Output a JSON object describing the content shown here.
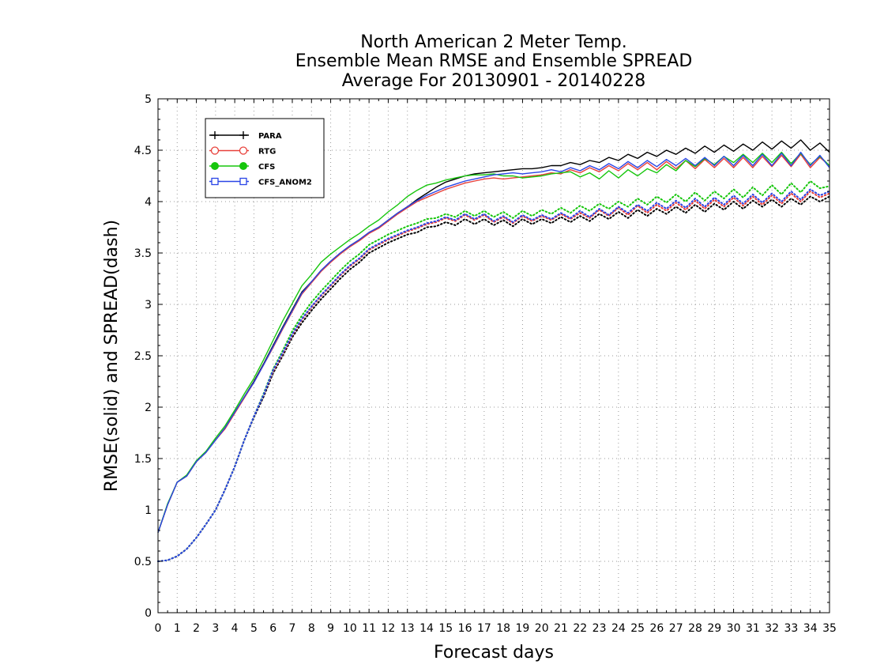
{
  "chart_data": {
    "type": "line",
    "title": [
      "North American 2 Meter Temp.",
      "Ensemble Mean RMSE and Ensemble SPREAD",
      "Average For 20130901 - 20140228"
    ],
    "xlabel": "Forecast days",
    "ylabel": "RMSE(solid) and SPREAD(dash)",
    "xlim": [
      0,
      35
    ],
    "ylim": [
      0,
      5
    ],
    "x_ticks": [
      "0",
      "1",
      "2",
      "3",
      "4",
      "5",
      "6",
      "7",
      "8",
      "9",
      "10",
      "11",
      "12",
      "13",
      "14",
      "15",
      "16",
      "17",
      "18",
      "19",
      "20",
      "21",
      "22",
      "23",
      "24",
      "25",
      "26",
      "27",
      "28",
      "29",
      "30",
      "31",
      "32",
      "33",
      "34",
      "35"
    ],
    "y_ticks": [
      "0",
      "0.5",
      "1",
      "1.5",
      "2",
      "2.5",
      "3",
      "3.5",
      "4",
      "4.5",
      "5"
    ],
    "grid": true,
    "legend_position": "top-left",
    "colors": {
      "PARA": "#000000",
      "RTG": "#e8403a",
      "CFS": "#16c60c",
      "CFS_ANOM2": "#2a45e6"
    },
    "x": [
      0,
      0.5,
      1,
      1.5,
      2,
      2.5,
      3,
      3.5,
      4,
      4.5,
      5,
      5.5,
      6,
      6.5,
      7,
      7.5,
      8,
      8.5,
      9,
      9.5,
      10,
      10.5,
      11,
      11.5,
      12,
      12.5,
      13,
      13.5,
      14,
      14.5,
      15,
      15.5,
      16,
      16.5,
      17,
      17.5,
      18,
      18.5,
      19,
      19.5,
      20,
      20.5,
      21,
      21.5,
      22,
      22.5,
      23,
      23.5,
      24,
      24.5,
      25,
      25.5,
      26,
      26.5,
      27,
      27.5,
      28,
      28.5,
      29,
      29.5,
      30,
      30.5,
      31,
      31.5,
      32,
      32.5,
      33,
      33.5,
      34,
      34.5,
      35
    ],
    "series": [
      {
        "name": "PARA",
        "style": "solid",
        "marker": "plus",
        "values": [
          0.78,
          1.05,
          1.27,
          1.33,
          1.47,
          1.56,
          1.68,
          1.8,
          1.95,
          2.1,
          2.25,
          2.42,
          2.6,
          2.78,
          2.95,
          3.12,
          3.22,
          3.33,
          3.42,
          3.5,
          3.57,
          3.63,
          3.7,
          3.75,
          3.82,
          3.89,
          3.95,
          4.02,
          4.08,
          4.14,
          4.19,
          4.22,
          4.25,
          4.27,
          4.28,
          4.29,
          4.3,
          4.31,
          4.32,
          4.32,
          4.33,
          4.35,
          4.35,
          4.38,
          4.36,
          4.4,
          4.38,
          4.43,
          4.4,
          4.46,
          4.42,
          4.48,
          4.44,
          4.5,
          4.46,
          4.52,
          4.47,
          4.54,
          4.48,
          4.55,
          4.49,
          4.56,
          4.5,
          4.58,
          4.51,
          4.59,
          4.52,
          4.6,
          4.5,
          4.57,
          4.48
        ]
      },
      {
        "name": "RTG",
        "style": "solid",
        "marker": "circle",
        "values": [
          0.78,
          1.05,
          1.27,
          1.33,
          1.47,
          1.56,
          1.68,
          1.79,
          1.94,
          2.09,
          2.24,
          2.41,
          2.58,
          2.76,
          2.93,
          3.1,
          3.21,
          3.32,
          3.41,
          3.49,
          3.56,
          3.62,
          3.69,
          3.74,
          3.81,
          3.88,
          3.94,
          4.0,
          4.04,
          4.08,
          4.12,
          4.15,
          4.18,
          4.2,
          4.22,
          4.23,
          4.22,
          4.23,
          4.24,
          4.25,
          4.26,
          4.28,
          4.27,
          4.31,
          4.28,
          4.33,
          4.29,
          4.35,
          4.3,
          4.37,
          4.31,
          4.38,
          4.31,
          4.39,
          4.32,
          4.4,
          4.32,
          4.41,
          4.33,
          4.42,
          4.33,
          4.43,
          4.33,
          4.44,
          4.34,
          4.45,
          4.34,
          4.46,
          4.33,
          4.43,
          4.35
        ]
      },
      {
        "name": "CFS",
        "style": "solid",
        "marker": "filled-circle",
        "values": [
          0.78,
          1.06,
          1.27,
          1.34,
          1.48,
          1.57,
          1.7,
          1.82,
          1.97,
          2.13,
          2.28,
          2.46,
          2.65,
          2.84,
          3.01,
          3.18,
          3.29,
          3.41,
          3.49,
          3.56,
          3.63,
          3.69,
          3.76,
          3.82,
          3.9,
          3.97,
          4.05,
          4.11,
          4.16,
          4.18,
          4.21,
          4.23,
          4.25,
          4.26,
          4.26,
          4.27,
          4.25,
          4.25,
          4.23,
          4.24,
          4.25,
          4.27,
          4.28,
          4.29,
          4.24,
          4.28,
          4.22,
          4.3,
          4.23,
          4.31,
          4.25,
          4.32,
          4.28,
          4.36,
          4.3,
          4.4,
          4.34,
          4.42,
          4.36,
          4.44,
          4.38,
          4.46,
          4.38,
          4.47,
          4.38,
          4.48,
          4.37,
          4.47,
          4.36,
          4.44,
          4.35
        ]
      },
      {
        "name": "CFS_ANOM2",
        "style": "solid",
        "marker": "square",
        "values": [
          0.78,
          1.05,
          1.27,
          1.33,
          1.47,
          1.56,
          1.68,
          1.8,
          1.95,
          2.1,
          2.24,
          2.41,
          2.59,
          2.77,
          2.94,
          3.11,
          3.22,
          3.33,
          3.42,
          3.5,
          3.57,
          3.63,
          3.7,
          3.75,
          3.82,
          3.89,
          3.95,
          4.01,
          4.06,
          4.1,
          4.14,
          4.17,
          4.2,
          4.22,
          4.24,
          4.26,
          4.27,
          4.28,
          4.27,
          4.28,
          4.29,
          4.31,
          4.29,
          4.33,
          4.3,
          4.35,
          4.31,
          4.37,
          4.32,
          4.39,
          4.33,
          4.4,
          4.34,
          4.41,
          4.35,
          4.42,
          4.35,
          4.43,
          4.35,
          4.44,
          4.35,
          4.45,
          4.35,
          4.46,
          4.35,
          4.47,
          4.35,
          4.48,
          4.35,
          4.45,
          4.33
        ]
      },
      {
        "name": "PARA spread",
        "style": "dotted",
        "color_key": "PARA",
        "values": [
          0.5,
          0.51,
          0.55,
          0.62,
          0.73,
          0.86,
          1.0,
          1.2,
          1.42,
          1.68,
          1.9,
          2.1,
          2.33,
          2.5,
          2.68,
          2.82,
          2.94,
          3.05,
          3.15,
          3.25,
          3.34,
          3.41,
          3.5,
          3.55,
          3.6,
          3.64,
          3.68,
          3.7,
          3.75,
          3.76,
          3.8,
          3.77,
          3.83,
          3.78,
          3.83,
          3.77,
          3.82,
          3.76,
          3.83,
          3.78,
          3.83,
          3.79,
          3.85,
          3.8,
          3.86,
          3.81,
          3.88,
          3.83,
          3.9,
          3.84,
          3.92,
          3.86,
          3.93,
          3.88,
          3.95,
          3.89,
          3.97,
          3.9,
          3.98,
          3.92,
          4.0,
          3.93,
          4.01,
          3.95,
          4.02,
          3.95,
          4.03,
          3.97,
          4.05,
          4.0,
          4.05
        ]
      },
      {
        "name": "RTG spread",
        "style": "dotted",
        "color_key": "RTG",
        "values": [
          0.5,
          0.51,
          0.55,
          0.62,
          0.73,
          0.86,
          1.0,
          1.2,
          1.42,
          1.68,
          1.91,
          2.12,
          2.35,
          2.52,
          2.7,
          2.85,
          2.97,
          3.08,
          3.18,
          3.28,
          3.37,
          3.44,
          3.53,
          3.58,
          3.63,
          3.67,
          3.71,
          3.74,
          3.78,
          3.8,
          3.84,
          3.81,
          3.87,
          3.82,
          3.87,
          3.8,
          3.85,
          3.79,
          3.86,
          3.81,
          3.86,
          3.82,
          3.88,
          3.83,
          3.89,
          3.84,
          3.92,
          3.86,
          3.94,
          3.87,
          3.96,
          3.89,
          3.97,
          3.91,
          3.99,
          3.92,
          4.01,
          3.93,
          4.02,
          3.95,
          4.04,
          3.96,
          4.05,
          3.97,
          4.06,
          3.98,
          4.08,
          4.0,
          4.1,
          4.04,
          4.08
        ]
      },
      {
        "name": "CFS spread",
        "style": "dotted",
        "color_key": "CFS",
        "values": [
          0.5,
          0.51,
          0.55,
          0.62,
          0.73,
          0.86,
          1.0,
          1.2,
          1.42,
          1.68,
          1.91,
          2.13,
          2.37,
          2.55,
          2.74,
          2.89,
          3.02,
          3.13,
          3.23,
          3.33,
          3.42,
          3.49,
          3.58,
          3.63,
          3.68,
          3.72,
          3.76,
          3.79,
          3.83,
          3.84,
          3.88,
          3.85,
          3.91,
          3.86,
          3.91,
          3.85,
          3.9,
          3.84,
          3.91,
          3.86,
          3.92,
          3.88,
          3.94,
          3.89,
          3.96,
          3.91,
          3.98,
          3.93,
          4.0,
          3.95,
          4.03,
          3.97,
          4.05,
          3.99,
          4.07,
          4.0,
          4.09,
          4.01,
          4.1,
          4.03,
          4.12,
          4.04,
          4.14,
          4.06,
          4.16,
          4.07,
          4.18,
          4.09,
          4.2,
          4.13,
          4.15
        ]
      },
      {
        "name": "CFS_ANOM2 spread",
        "style": "dotted",
        "color_key": "CFS_ANOM2",
        "values": [
          0.5,
          0.51,
          0.55,
          0.62,
          0.73,
          0.86,
          1.0,
          1.2,
          1.42,
          1.68,
          1.91,
          2.12,
          2.36,
          2.53,
          2.71,
          2.86,
          2.98,
          3.09,
          3.19,
          3.29,
          3.38,
          3.45,
          3.54,
          3.59,
          3.64,
          3.68,
          3.72,
          3.75,
          3.79,
          3.81,
          3.85,
          3.82,
          3.88,
          3.83,
          3.88,
          3.81,
          3.86,
          3.8,
          3.87,
          3.82,
          3.87,
          3.83,
          3.89,
          3.84,
          3.91,
          3.85,
          3.93,
          3.87,
          3.95,
          3.89,
          3.97,
          3.91,
          3.99,
          3.93,
          4.01,
          3.94,
          4.03,
          3.95,
          4.04,
          3.97,
          4.06,
          3.98,
          4.07,
          3.99,
          4.08,
          4.0,
          4.1,
          4.02,
          4.12,
          4.06,
          4.1
        ]
      }
    ]
  }
}
